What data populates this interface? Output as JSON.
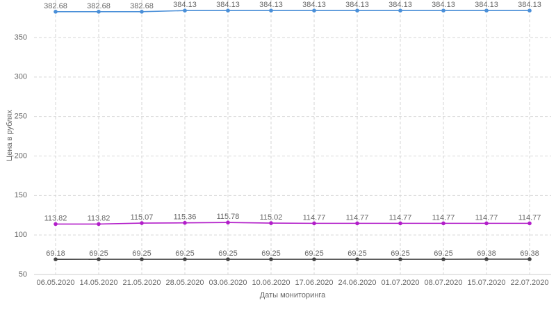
{
  "chart_data": {
    "type": "line",
    "y_label": "Цена в рублях",
    "x_label": "Даты мониторинга",
    "categories": [
      "06.05.2020",
      "14.05.2020",
      "21.05.2020",
      "28.05.2020",
      "03.06.2020",
      "10.06.2020",
      "17.06.2020",
      "24.06.2020",
      "01.07.2020",
      "08.07.2020",
      "15.07.2020",
      "22.07.2020"
    ],
    "series": [
      {
        "color": "#4a8fd8",
        "values": [
          382.68,
          382.68,
          382.68,
          384.13,
          384.13,
          384.13,
          384.13,
          384.13,
          384.13,
          384.13,
          384.13,
          384.13
        ]
      },
      {
        "color": "#b21ec9",
        "values": [
          113.82,
          113.82,
          115.07,
          115.36,
          115.78,
          115.02,
          114.77,
          114.77,
          114.77,
          114.77,
          114.77,
          114.77
        ]
      },
      {
        "color": "#444444",
        "values": [
          69.18,
          69.25,
          69.25,
          69.25,
          69.25,
          69.25,
          69.25,
          69.25,
          69.25,
          69.25,
          69.38,
          69.38
        ]
      }
    ],
    "ylim": [
      50,
      397.5
    ],
    "yticks": [
      50,
      100,
      150,
      200,
      250,
      300,
      350
    ],
    "grid": true
  }
}
